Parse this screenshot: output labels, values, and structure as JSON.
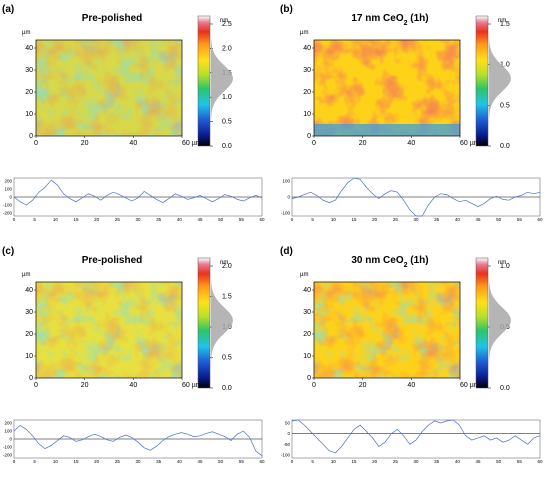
{
  "panels": [
    {
      "label": "(a)",
      "title": "Pre-polished",
      "title_sub": "",
      "title_tail": "",
      "unit": "nm",
      "map_unit": "µm",
      "x_ticks": [
        "0",
        "20",
        "40",
        "60 µm"
      ],
      "y_ticks": [
        "40",
        "30",
        "20",
        "10",
        "0"
      ],
      "scale_ticks": [
        "2.5",
        "2.0",
        "1.5",
        "1.0",
        "0.5",
        "0.0"
      ],
      "profile_y_ticks": [
        "200",
        "100",
        "0",
        "-100",
        "-200"
      ],
      "profile_x_ticks": [
        "0",
        "5",
        "10",
        "15",
        "20",
        "25",
        "30",
        "35",
        "40",
        "45",
        "50",
        "55",
        "60"
      ],
      "profile": [
        0,
        -60,
        -100,
        -40,
        60,
        120,
        210,
        150,
        40,
        -20,
        -60,
        -10,
        40,
        10,
        -40,
        20,
        60,
        30,
        -10,
        -50,
        -10,
        70,
        20,
        -30,
        -70,
        -20,
        40,
        10,
        -30,
        -10,
        20,
        -20,
        -60,
        -20,
        30,
        10,
        -30,
        -50,
        -10,
        20,
        -10
      ]
    },
    {
      "label": "(b)",
      "title": "17 nm CeO",
      "title_sub": "2",
      "title_tail": " (1h)",
      "unit": "nm",
      "map_unit": "µm",
      "x_ticks": [
        "0",
        "20",
        "40",
        "60 µm"
      ],
      "y_ticks": [
        "40",
        "30",
        "20",
        "10",
        "0"
      ],
      "scale_ticks": [
        "1.5",
        "1.0",
        "0.5",
        "0.0"
      ],
      "profile_y_ticks": [
        "100",
        "0",
        "-100"
      ],
      "profile_x_ticks": [
        "0",
        "5",
        "10",
        "15",
        "20",
        "25",
        "30",
        "35",
        "40",
        "45",
        "50",
        "55",
        "60"
      ],
      "profile": [
        -10,
        0,
        15,
        30,
        10,
        -20,
        -35,
        -20,
        40,
        90,
        140,
        110,
        60,
        20,
        -10,
        20,
        40,
        30,
        -20,
        -80,
        -140,
        -120,
        -50,
        0,
        20,
        15,
        -10,
        -30,
        -20,
        -40,
        -60,
        -40,
        -10,
        5,
        -15,
        -20,
        0,
        10,
        30,
        20,
        30
      ]
    },
    {
      "label": "(c)",
      "title": "Pre-polished",
      "title_sub": "",
      "title_tail": "",
      "unit": "nm",
      "map_unit": "µm",
      "x_ticks": [
        "0",
        "20",
        "40",
        "60 µm"
      ],
      "y_ticks": [
        "40",
        "30",
        "20",
        "10",
        "0"
      ],
      "scale_ticks": [
        "2.0",
        "1.5",
        "1.0",
        "0.5",
        "0.0"
      ],
      "profile_y_ticks": [
        "200",
        "100",
        "0",
        "-100",
        "-200"
      ],
      "profile_x_ticks": [
        "0",
        "5",
        "10",
        "15",
        "20",
        "25",
        "30",
        "35",
        "40",
        "45",
        "50",
        "55",
        "60"
      ],
      "profile": [
        100,
        170,
        120,
        40,
        -60,
        -120,
        -80,
        -20,
        40,
        20,
        -30,
        -10,
        30,
        60,
        30,
        -10,
        -30,
        20,
        50,
        20,
        -40,
        -110,
        -140,
        -90,
        -20,
        30,
        60,
        80,
        60,
        30,
        40,
        70,
        90,
        60,
        30,
        -20,
        60,
        100,
        20,
        -150,
        -210
      ]
    },
    {
      "label": "(d)",
      "title": "30 nm CeO",
      "title_sub": "2",
      "title_tail": " (1h)",
      "unit": "nm",
      "map_unit": "µm",
      "x_ticks": [
        "0",
        "20",
        "40",
        "60 µm"
      ],
      "y_ticks": [
        "40",
        "30",
        "20",
        "10",
        "0"
      ],
      "scale_ticks": [
        "1.0",
        "0.5",
        "0.0"
      ],
      "profile_y_ticks": [
        "50",
        "0",
        "-50",
        "-100"
      ],
      "profile_x_ticks": [
        "0",
        "5",
        "10",
        "15",
        "20",
        "25",
        "30",
        "35",
        "40",
        "45",
        "50",
        "55",
        "60"
      ],
      "profile": [
        60,
        70,
        40,
        10,
        -20,
        -50,
        -80,
        -90,
        -60,
        -20,
        20,
        40,
        10,
        -20,
        -60,
        -40,
        0,
        20,
        -10,
        -50,
        -30,
        10,
        40,
        60,
        50,
        60,
        70,
        40,
        -10,
        -30,
        -20,
        -10,
        -30,
        -20,
        -40,
        -30,
        -10,
        -30,
        -50,
        -20,
        -10
      ]
    }
  ]
}
